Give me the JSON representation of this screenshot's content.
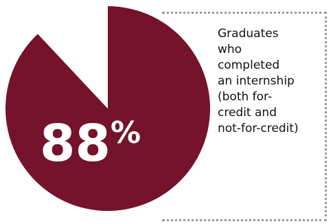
{
  "colors": {
    "slice": "#74132b",
    "remainder": "#ffffff",
    "frame": "#9a9a9a"
  },
  "chart_data": {
    "type": "pie",
    "values": [
      88,
      12
    ],
    "value_label": "88",
    "unit_label": "%",
    "annotation_lines": [
      "Graduates",
      "who",
      "completed",
      "an internship",
      "(both for-",
      "credit and",
      "not-for-credit)"
    ]
  }
}
